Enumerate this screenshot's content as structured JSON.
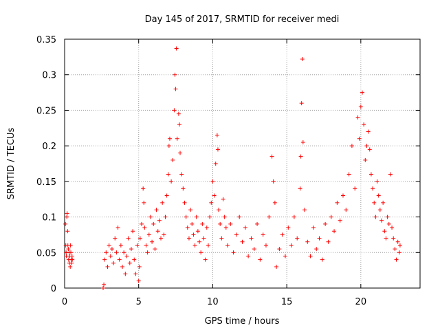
{
  "chart_data": {
    "type": "scatter",
    "title": "Day 145 of 2017, SRMTID for receiver medi",
    "xlabel": "GPS time / hours",
    "ylabel": "SRMTID / TECUs",
    "xlim": [
      0,
      24
    ],
    "ylim": [
      0,
      0.35
    ],
    "grid": true,
    "marker": "+",
    "x_ticks": [
      0,
      5,
      10,
      15,
      20
    ],
    "x_tick_labels": [
      "0",
      "5",
      "10",
      "15",
      "20"
    ],
    "y_ticks": [
      0,
      0.05,
      0.1,
      0.15,
      0.2,
      0.25,
      0.3,
      0.35
    ],
    "y_tick_labels": [
      "0",
      "0.05",
      "0.1",
      "0.15",
      "0.2",
      "0.25",
      "0.3",
      "0.35"
    ],
    "series": [
      {
        "name": "SRMTID",
        "color": "#ff0000",
        "points": [
          [
            0.05,
            0.09
          ],
          [
            0.08,
            0.06
          ],
          [
            0.1,
            0.05
          ],
          [
            0.12,
            0.045
          ],
          [
            0.15,
            0.1
          ],
          [
            0.17,
            0.105
          ],
          [
            0.2,
            0.08
          ],
          [
            0.22,
            0.06
          ],
          [
            0.25,
            0.055
          ],
          [
            0.27,
            0.04
          ],
          [
            0.3,
            0.05
          ],
          [
            0.32,
            0.035
          ],
          [
            0.35,
            0.045
          ],
          [
            0.38,
            0.03
          ],
          [
            0.4,
            0.06
          ],
          [
            0.42,
            0.05
          ],
          [
            0.45,
            0.04
          ],
          [
            0.48,
            0.035
          ],
          [
            0.5,
            0.045
          ],
          [
            0.52,
            0.04
          ],
          [
            2.6,
            0.0
          ],
          [
            2.65,
            0.005
          ],
          [
            2.7,
            0.04
          ],
          [
            2.8,
            0.05
          ],
          [
            2.9,
            0.03
          ],
          [
            3.0,
            0.06
          ],
          [
            3.1,
            0.045
          ],
          [
            3.2,
            0.055
          ],
          [
            3.3,
            0.035
          ],
          [
            3.4,
            0.07
          ],
          [
            3.5,
            0.05
          ],
          [
            3.6,
            0.085
          ],
          [
            3.7,
            0.04
          ],
          [
            3.8,
            0.06
          ],
          [
            3.9,
            0.03
          ],
          [
            4.0,
            0.05
          ],
          [
            4.1,
            0.02
          ],
          [
            4.2,
            0.045
          ],
          [
            4.3,
            0.07
          ],
          [
            4.4,
            0.035
          ],
          [
            4.5,
            0.055
          ],
          [
            4.6,
            0.08
          ],
          [
            4.7,
            0.04
          ],
          [
            4.8,
            0.02
          ],
          [
            4.9,
            0.06
          ],
          [
            5.0,
            0.01
          ],
          [
            5.05,
            0.03
          ],
          [
            5.1,
            0.07
          ],
          [
            5.2,
            0.09
          ],
          [
            5.3,
            0.14
          ],
          [
            5.35,
            0.12
          ],
          [
            5.4,
            0.085
          ],
          [
            5.5,
            0.06
          ],
          [
            5.6,
            0.05
          ],
          [
            5.7,
            0.075
          ],
          [
            5.8,
            0.1
          ],
          [
            5.9,
            0.065
          ],
          [
            6.0,
            0.09
          ],
          [
            6.1,
            0.055
          ],
          [
            6.2,
            0.11
          ],
          [
            6.3,
            0.08
          ],
          [
            6.4,
            0.095
          ],
          [
            6.5,
            0.07
          ],
          [
            6.6,
            0.12
          ],
          [
            6.7,
            0.075
          ],
          [
            6.8,
            0.1
          ],
          [
            6.9,
            0.13
          ],
          [
            7.0,
            0.16
          ],
          [
            7.05,
            0.2
          ],
          [
            7.1,
            0.21
          ],
          [
            7.2,
            0.15
          ],
          [
            7.3,
            0.18
          ],
          [
            7.4,
            0.25
          ],
          [
            7.45,
            0.3
          ],
          [
            7.5,
            0.28
          ],
          [
            7.55,
            0.337
          ],
          [
            7.6,
            0.21
          ],
          [
            7.7,
            0.245
          ],
          [
            7.75,
            0.23
          ],
          [
            7.8,
            0.19
          ],
          [
            7.9,
            0.16
          ],
          [
            8.0,
            0.14
          ],
          [
            8.1,
            0.12
          ],
          [
            8.2,
            0.1
          ],
          [
            8.3,
            0.085
          ],
          [
            8.4,
            0.07
          ],
          [
            8.5,
            0.11
          ],
          [
            8.6,
            0.09
          ],
          [
            8.7,
            0.075
          ],
          [
            8.8,
            0.06
          ],
          [
            8.9,
            0.1
          ],
          [
            9.0,
            0.08
          ],
          [
            9.1,
            0.065
          ],
          [
            9.2,
            0.05
          ],
          [
            9.3,
            0.09
          ],
          [
            9.4,
            0.07
          ],
          [
            9.5,
            0.04
          ],
          [
            9.6,
            0.085
          ],
          [
            9.7,
            0.06
          ],
          [
            9.8,
            0.1
          ],
          [
            9.9,
            0.12
          ],
          [
            10.0,
            0.15
          ],
          [
            10.1,
            0.13
          ],
          [
            10.2,
            0.175
          ],
          [
            10.3,
            0.215
          ],
          [
            10.35,
            0.195
          ],
          [
            10.4,
            0.11
          ],
          [
            10.5,
            0.09
          ],
          [
            10.6,
            0.07
          ],
          [
            10.7,
            0.125
          ],
          [
            10.8,
            0.1
          ],
          [
            10.9,
            0.085
          ],
          [
            11.0,
            0.06
          ],
          [
            11.2,
            0.09
          ],
          [
            11.4,
            0.05
          ],
          [
            11.6,
            0.075
          ],
          [
            11.8,
            0.1
          ],
          [
            12.0,
            0.065
          ],
          [
            12.2,
            0.085
          ],
          [
            12.4,
            0.045
          ],
          [
            12.6,
            0.07
          ],
          [
            12.8,
            0.055
          ],
          [
            13.0,
            0.09
          ],
          [
            13.2,
            0.04
          ],
          [
            13.4,
            0.075
          ],
          [
            13.6,
            0.06
          ],
          [
            13.8,
            0.1
          ],
          [
            14.0,
            0.185
          ],
          [
            14.1,
            0.15
          ],
          [
            14.2,
            0.12
          ],
          [
            14.3,
            0.03
          ],
          [
            14.5,
            0.055
          ],
          [
            14.7,
            0.075
          ],
          [
            14.9,
            0.045
          ],
          [
            15.1,
            0.085
          ],
          [
            15.3,
            0.06
          ],
          [
            15.5,
            0.1
          ],
          [
            15.7,
            0.07
          ],
          [
            15.9,
            0.14
          ],
          [
            15.95,
            0.185
          ],
          [
            16.0,
            0.26
          ],
          [
            16.05,
            0.322
          ],
          [
            16.1,
            0.205
          ],
          [
            16.2,
            0.11
          ],
          [
            16.4,
            0.065
          ],
          [
            16.6,
            0.045
          ],
          [
            16.8,
            0.085
          ],
          [
            17.0,
            0.055
          ],
          [
            17.2,
            0.07
          ],
          [
            17.4,
            0.04
          ],
          [
            17.6,
            0.09
          ],
          [
            17.8,
            0.065
          ],
          [
            18.0,
            0.1
          ],
          [
            18.2,
            0.08
          ],
          [
            18.4,
            0.12
          ],
          [
            18.6,
            0.095
          ],
          [
            18.8,
            0.13
          ],
          [
            19.0,
            0.11
          ],
          [
            19.2,
            0.16
          ],
          [
            19.4,
            0.2
          ],
          [
            19.6,
            0.14
          ],
          [
            19.8,
            0.24
          ],
          [
            19.9,
            0.21
          ],
          [
            20.0,
            0.255
          ],
          [
            20.1,
            0.275
          ],
          [
            20.2,
            0.23
          ],
          [
            20.3,
            0.18
          ],
          [
            20.4,
            0.2
          ],
          [
            20.5,
            0.22
          ],
          [
            20.6,
            0.195
          ],
          [
            20.7,
            0.16
          ],
          [
            20.8,
            0.14
          ],
          [
            20.9,
            0.12
          ],
          [
            21.0,
            0.1
          ],
          [
            21.1,
            0.15
          ],
          [
            21.2,
            0.13
          ],
          [
            21.3,
            0.11
          ],
          [
            21.4,
            0.095
          ],
          [
            21.5,
            0.12
          ],
          [
            21.6,
            0.08
          ],
          [
            21.7,
            0.07
          ],
          [
            21.8,
            0.1
          ],
          [
            21.9,
            0.09
          ],
          [
            22.0,
            0.16
          ],
          [
            22.1,
            0.085
          ],
          [
            22.2,
            0.07
          ],
          [
            22.3,
            0.055
          ],
          [
            22.4,
            0.04
          ],
          [
            22.5,
            0.065
          ],
          [
            22.6,
            0.05
          ],
          [
            22.65,
            0.06
          ]
        ]
      }
    ]
  }
}
